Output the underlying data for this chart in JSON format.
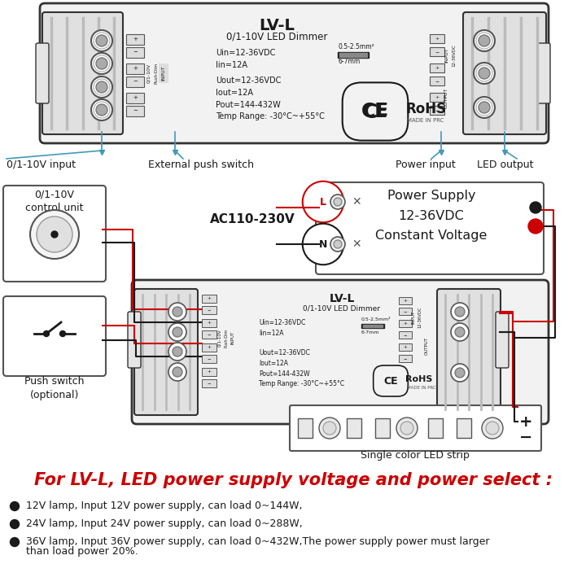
{
  "bg_color": "#ffffff",
  "title_top": "LV-L",
  "subtitle_top": "0/1-10V LED Dimmer",
  "specs": "Uin=12-36VDC\nIin=12A\n\nUout=12-36VDC\nIout=12A\nPout=144-432W\nTemp Range: -30°C~+55°C",
  "labels_top": [
    "0/1-10V input",
    "External push switch",
    "Power input",
    "LED output"
  ],
  "ac_label": "AC110-230V",
  "ps_title": "Power Supply\n12-36VDC\nConstant Voltage",
  "ctrl_label": "0/1-10V\ncontrol unit",
  "push_label": "Push switch\n(optional)",
  "led_strip_label": "Single color LED strip",
  "footer_title": "For LV-L, LED power supply voltage and power select :",
  "bullet1": "12V lamp, Input 12V power supply, can load 0~144W,",
  "bullet2": "24V lamp, Input 24V power supply, can load 0~288W,",
  "bullet3": "36V lamp, Input 36V power supply, can load 0~432W,The power supply power must larger",
  "bullet3b": "than load power 20%.",
  "red": "#cc0000",
  "dark": "#1a1a1a",
  "gray": "#888888",
  "lgray": "#dddddd",
  "mgray": "#aaaaaa",
  "dgray": "#555555",
  "border": "#333333",
  "cyan": "#4499bb"
}
